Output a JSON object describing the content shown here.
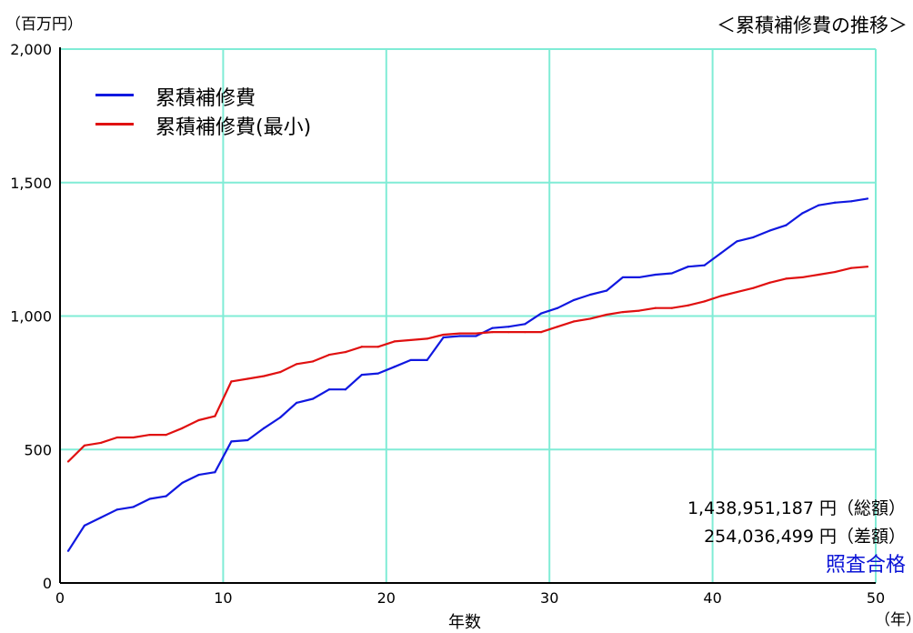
{
  "chart_data": {
    "type": "line",
    "title": "＜累積補修費の推移＞",
    "unit_label": "（百万円）",
    "xlabel": "年数",
    "x_unit_label": "（年）",
    "xlim": [
      0,
      50
    ],
    "ylim": [
      0,
      2000
    ],
    "x_ticks": [
      0,
      10,
      20,
      30,
      40,
      50
    ],
    "y_ticks": [
      0,
      500,
      1000,
      1500,
      2000
    ],
    "x_tick_labels": [
      "0",
      "10",
      "20",
      "30",
      "40",
      "50"
    ],
    "y_tick_labels": [
      "0",
      "500",
      "1,000",
      "1,500",
      "2,000"
    ],
    "grid": true,
    "legend_position": "top-left",
    "colors": {
      "grid": "#80ecd6",
      "series1": "#1018e0",
      "series2": "#e01010"
    },
    "x": [
      0.5,
      1.5,
      2.5,
      3.5,
      4.5,
      5.5,
      6.5,
      7.5,
      8.5,
      9.5,
      10.5,
      11.5,
      12.5,
      13.5,
      14.5,
      15.5,
      16.5,
      17.5,
      18.5,
      19.5,
      20.5,
      21.5,
      22.5,
      23.5,
      24.5,
      25.5,
      26.5,
      27.5,
      28.5,
      29.5,
      30.5,
      31.5,
      32.5,
      33.5,
      34.5,
      35.5,
      36.5,
      37.5,
      38.5,
      39.5,
      40.5,
      41.5,
      42.5,
      43.5,
      44.5,
      45.5,
      46.5,
      47.5,
      48.5,
      49.5
    ],
    "series": [
      {
        "name": "累積補修費",
        "color": "#1018e0",
        "values": [
          120,
          215,
          245,
          275,
          285,
          315,
          325,
          375,
          405,
          415,
          530,
          535,
          580,
          620,
          675,
          690,
          725,
          725,
          780,
          785,
          810,
          835,
          835,
          920,
          925,
          925,
          955,
          960,
          970,
          1010,
          1030,
          1060,
          1080,
          1095,
          1145,
          1145,
          1155,
          1160,
          1185,
          1190,
          1235,
          1280,
          1295,
          1320,
          1340,
          1385,
          1415,
          1425,
          1430,
          1440
        ]
      },
      {
        "name": "累積補修費(最小)",
        "color": "#e01010",
        "values": [
          455,
          515,
          525,
          545,
          545,
          555,
          555,
          580,
          610,
          625,
          755,
          765,
          775,
          790,
          820,
          830,
          855,
          865,
          885,
          885,
          905,
          910,
          915,
          930,
          935,
          935,
          940,
          940,
          940,
          940,
          960,
          980,
          990,
          1005,
          1015,
          1020,
          1030,
          1030,
          1040,
          1055,
          1075,
          1090,
          1105,
          1125,
          1140,
          1145,
          1155,
          1165,
          1180,
          1185
        ]
      }
    ],
    "annotations": {
      "total": "1,438,951,187 円（総額）",
      "difference": "254,036,499 円（差額）",
      "verdict": "照査合格"
    }
  }
}
